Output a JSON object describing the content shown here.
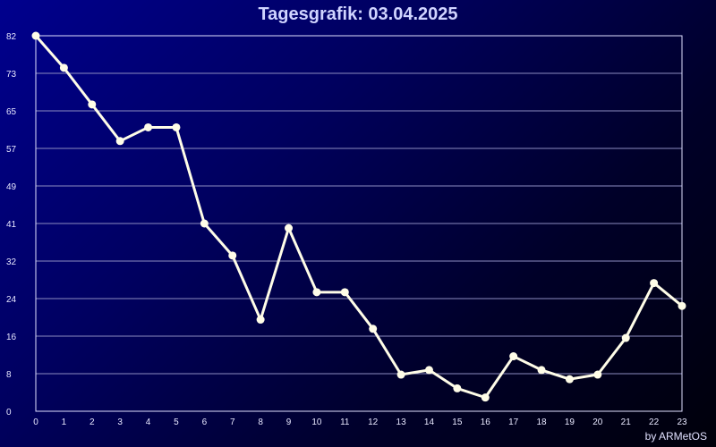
{
  "chart_data": {
    "type": "line",
    "title": "Tagesgrafik: 03.04.2025",
    "credit": "by ARMetOS",
    "x": [
      0,
      1,
      2,
      3,
      4,
      5,
      6,
      7,
      8,
      9,
      10,
      11,
      12,
      13,
      14,
      15,
      16,
      17,
      18,
      19,
      20,
      21,
      22,
      23
    ],
    "x_tick_labels": [
      "0",
      "1",
      "2",
      "3",
      "4",
      "5",
      "6",
      "7",
      "8",
      "9",
      "10",
      "11",
      "12",
      "13",
      "14",
      "15",
      "16",
      "17",
      "18",
      "19",
      "20",
      "21",
      "22",
      "23"
    ],
    "y_tick_labels": [
      "82",
      "73",
      "65",
      "57",
      "49",
      "41",
      "32",
      "24",
      "16",
      "8",
      "0"
    ],
    "ylim": [
      0,
      82
    ],
    "xlim": [
      0,
      23
    ],
    "grid": true,
    "series": [
      {
        "values": [
          82,
          75,
          67,
          59,
          62,
          62,
          41,
          34,
          20,
          40,
          26,
          26,
          18,
          8,
          9,
          5,
          3,
          12,
          9,
          7,
          8,
          16,
          28,
          23
        ],
        "color": "#fffde8"
      }
    ],
    "colors": {
      "line": "#fffde8",
      "grid": "#8c8cc0",
      "frame": "#e0e0ff",
      "title": "#d0d4ff",
      "tick_text": "#e8e8ff"
    }
  }
}
